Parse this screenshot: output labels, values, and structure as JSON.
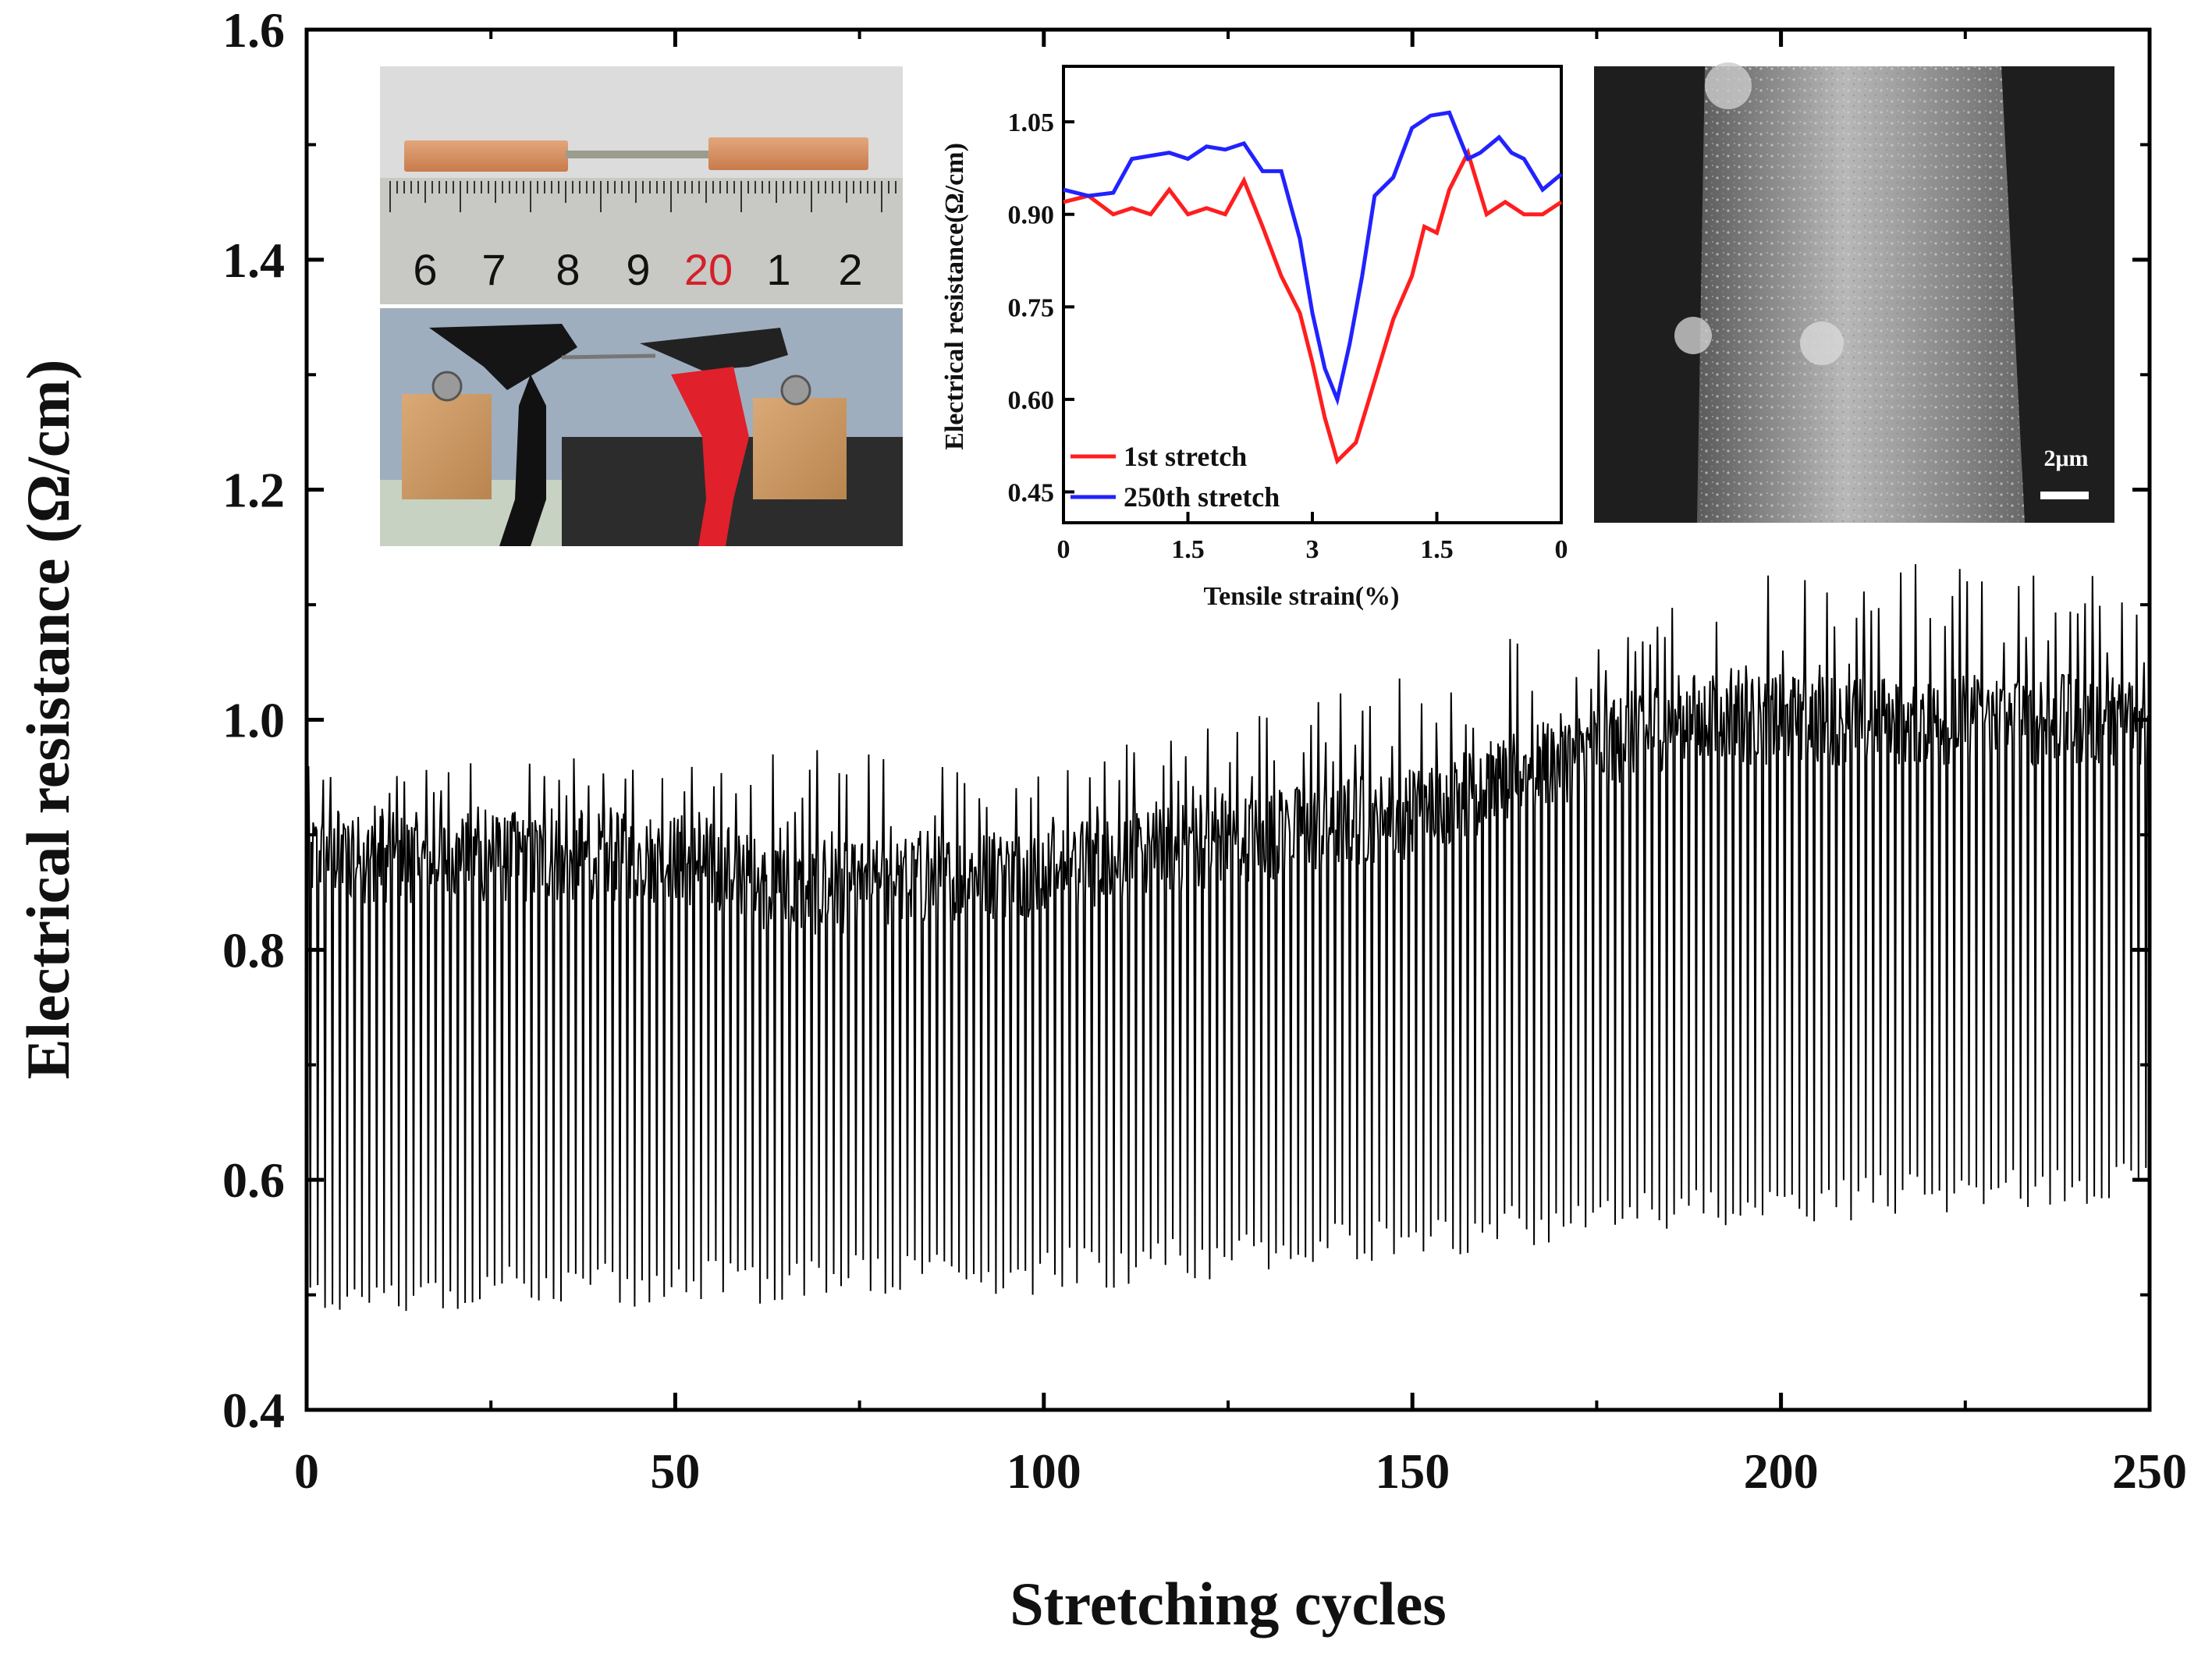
{
  "chart_data": [
    {
      "type": "line",
      "description_id": "main",
      "title": "",
      "xlabel": "Stretching cycles",
      "ylabel": "Electrical resistance (Ω/cm)",
      "xlim": [
        0,
        250
      ],
      "ylim": [
        0.4,
        1.6
      ],
      "xticks": [
        0,
        50,
        100,
        150,
        200,
        250
      ],
      "yticks": [
        0.4,
        0.6,
        0.8,
        1.0,
        1.2,
        1.4,
        1.6
      ],
      "xtick_labels": [
        "0",
        "50",
        "100",
        "150",
        "200",
        "250"
      ],
      "ytick_labels": [
        "0.4",
        "0.6",
        "0.8",
        "1.0",
        "1.2",
        "1.4",
        "1.6"
      ],
      "grid": false,
      "series": [
        {
          "name": "Resistance",
          "color": "#000000",
          "cycles": 250,
          "baseline_at_cycle": [
            [
              0,
              0.88
            ],
            [
              50,
              0.88
            ],
            [
              66,
              0.85
            ],
            [
              100,
              0.87
            ],
            [
              150,
              0.92
            ],
            [
              185,
              1.0
            ],
            [
              250,
              1.0
            ]
          ],
          "minimum_at_cycle": [
            [
              0,
              0.5
            ],
            [
              50,
              0.51
            ],
            [
              100,
              0.52
            ],
            [
              150,
              0.55
            ],
            [
              200,
              0.58
            ],
            [
              250,
              0.6
            ]
          ],
          "peak_max_at_cycle": [
            [
              0,
              0.96
            ],
            [
              100,
              0.98
            ],
            [
              150,
              1.05
            ],
            [
              200,
              1.13
            ],
            [
              250,
              1.15
            ]
          ]
        }
      ]
    },
    {
      "type": "line",
      "description_id": "inset",
      "title": "",
      "xlabel": "Tensile strain(%)",
      "ylabel": "Electrical resistance(Ω/cm)",
      "x_positions": [
        0,
        1,
        2,
        3,
        4
      ],
      "xtick_labels": [
        "0",
        "1.5",
        "3",
        "1.5",
        "0"
      ],
      "ylim": [
        0.4,
        1.14
      ],
      "yticks": [
        0.45,
        0.6,
        0.75,
        0.9,
        1.05
      ],
      "ytick_labels": [
        "0.45",
        "0.60",
        "0.75",
        "0.90",
        "1.05"
      ],
      "series": [
        {
          "name": "1st stretch",
          "color": "#ff1e1e",
          "x": [
            0,
            0.2,
            0.4,
            0.55,
            0.7,
            0.85,
            1.0,
            1.15,
            1.3,
            1.45,
            1.6,
            1.75,
            1.9,
            2.0,
            2.1,
            2.2,
            2.35,
            2.5,
            2.65,
            2.8,
            2.9,
            3.0,
            3.1,
            3.25,
            3.4,
            3.55,
            3.7,
            3.85,
            4.0
          ],
          "values": [
            0.92,
            0.93,
            0.9,
            0.91,
            0.9,
            0.94,
            0.9,
            0.91,
            0.9,
            0.955,
            0.88,
            0.8,
            0.74,
            0.66,
            0.57,
            0.5,
            0.53,
            0.63,
            0.73,
            0.8,
            0.88,
            0.87,
            0.94,
            1.0,
            0.9,
            0.92,
            0.9,
            0.9,
            0.92
          ]
        },
        {
          "name": "250th stretch",
          "color": "#2222ff",
          "x": [
            0,
            0.2,
            0.4,
            0.55,
            0.7,
            0.85,
            1.0,
            1.15,
            1.3,
            1.45,
            1.6,
            1.75,
            1.9,
            2.0,
            2.1,
            2.2,
            2.3,
            2.4,
            2.5,
            2.65,
            2.8,
            2.95,
            3.1,
            3.25,
            3.35,
            3.5,
            3.6,
            3.7,
            3.85,
            4.0
          ],
          "values": [
            0.94,
            0.93,
            0.935,
            0.99,
            0.995,
            1.0,
            0.99,
            1.01,
            1.005,
            1.015,
            0.97,
            0.97,
            0.86,
            0.74,
            0.65,
            0.6,
            0.69,
            0.8,
            0.93,
            0.96,
            1.04,
            1.06,
            1.065,
            0.99,
            1.0,
            1.025,
            1.0,
            0.99,
            0.94,
            0.965
          ]
        }
      ]
    }
  ],
  "photo_ruler_labels": [
    "6",
    "7",
    "8",
    "9",
    "20",
    "1",
    "2"
  ],
  "sem_scale_bar": "2μm"
}
